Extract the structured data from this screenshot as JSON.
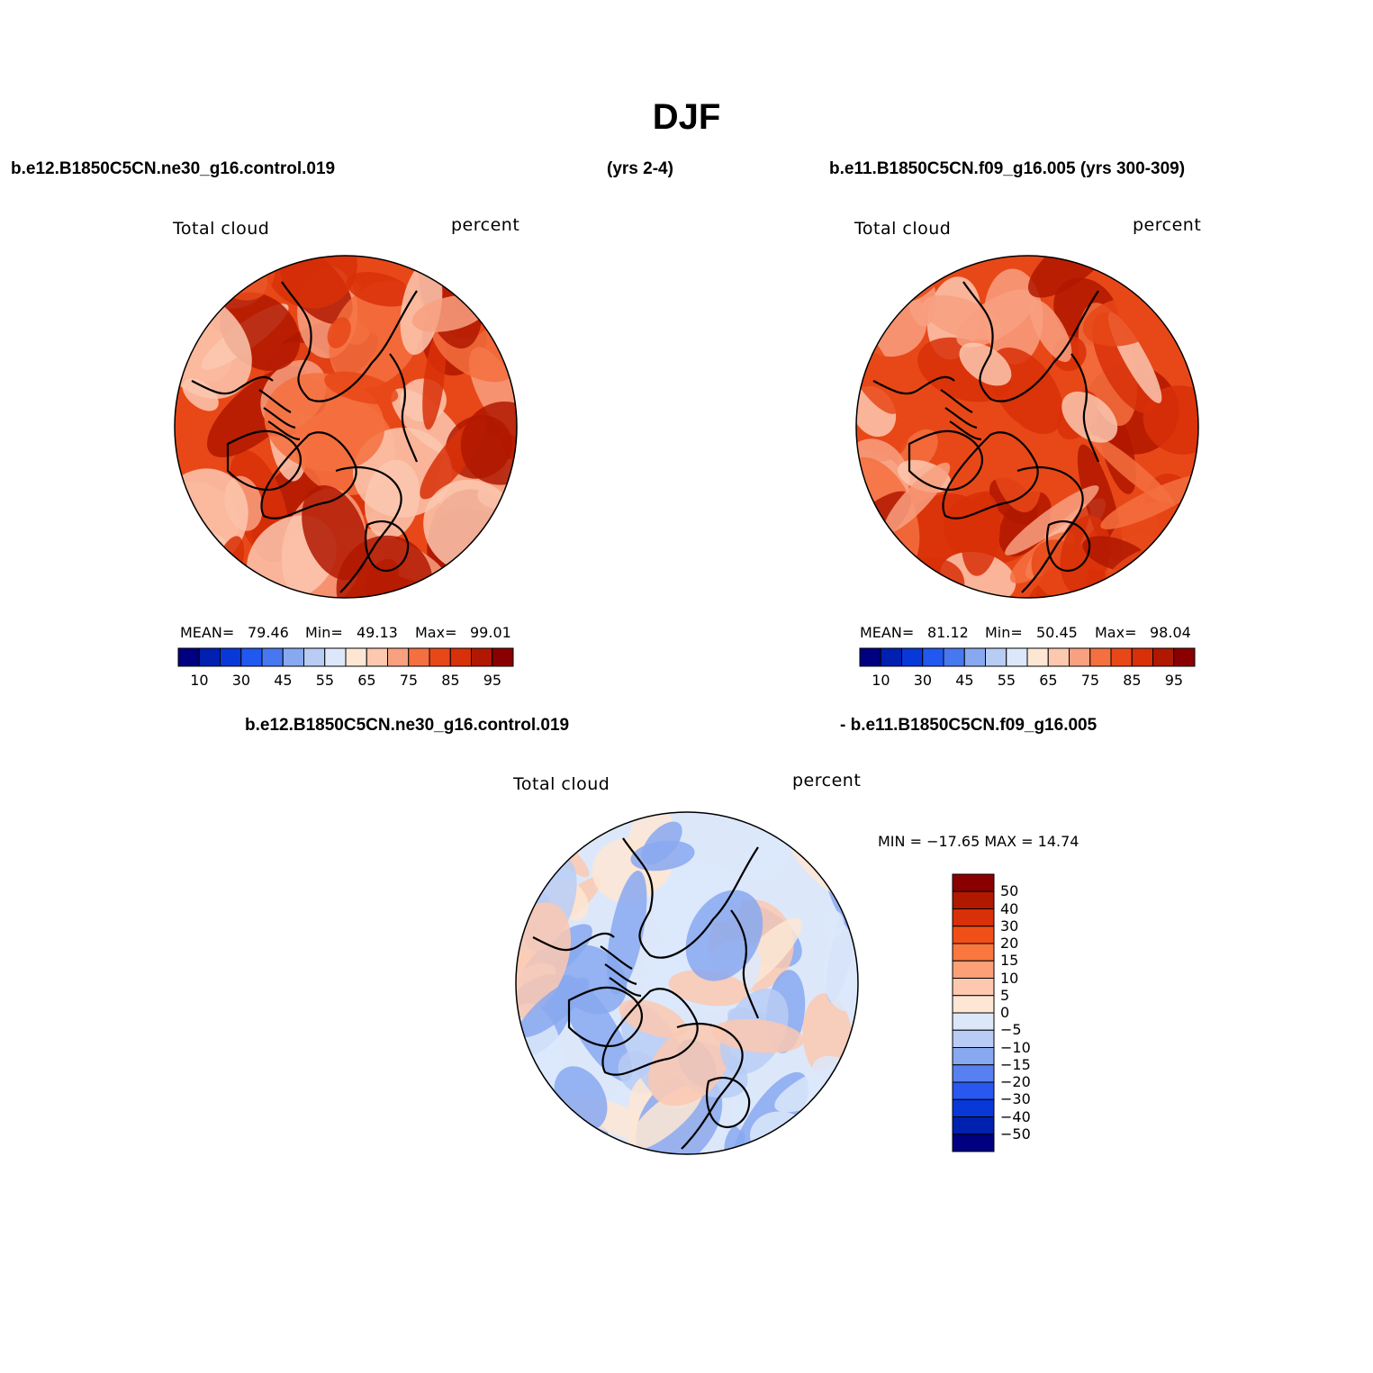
{
  "figure": {
    "title": "DJF",
    "top_left_header": "b.e12.B1850C5CN.ne30_g16.control.019",
    "top_mid_header": "(yrs 2-4)",
    "top_right_header": "b.e11.B1850C5CN.f09_g16.005 (yrs 300-309)",
    "diff_header_left": "b.e12.B1850C5CN.ne30_g16.control.019",
    "diff_header_right": "- b.e11.B1850C5CN.f09_g16.005"
  },
  "panels": [
    {
      "variable": "Total cloud",
      "units": "percent",
      "mean_label": "MEAN=",
      "mean": "79.46",
      "min_label": "Min=",
      "min": "49.13",
      "max_label": "Max=",
      "max": "99.01"
    },
    {
      "variable": "Total cloud",
      "units": "percent",
      "mean_label": "MEAN=",
      "mean": "81.12",
      "min_label": "Min=",
      "min": "50.45",
      "max_label": "Max=",
      "max": "98.04"
    }
  ],
  "diff_panel": {
    "variable": "Total cloud",
    "units": "percent",
    "minmax_text": "MIN = −17.65 MAX =  14.74"
  },
  "colorbar_main": {
    "colors": [
      "#000080",
      "#0020b0",
      "#0838d8",
      "#2058f0",
      "#4878f0",
      "#88a8f0",
      "#b8ccf4",
      "#dce8fa",
      "#fde6d4",
      "#fcc8b0",
      "#f8a080",
      "#f47040",
      "#e84818",
      "#d83008",
      "#b01800",
      "#8a0000"
    ],
    "labels": [
      "10",
      "30",
      "45",
      "55",
      "65",
      "75",
      "85",
      "95"
    ]
  },
  "colorbar_diff": {
    "colors": [
      "#8a0000",
      "#b01800",
      "#d83008",
      "#f05018",
      "#f87840",
      "#fca078",
      "#fcc8b0",
      "#fde6d4",
      "#dce8fa",
      "#b8ccf4",
      "#88a8f0",
      "#5880f0",
      "#2858f0",
      "#0838d8",
      "#0020b0",
      "#000080"
    ],
    "labels": [
      "50",
      "40",
      "30",
      "20",
      "15",
      "10",
      "5",
      "0",
      "−5",
      "−10",
      "−15",
      "−20",
      "−30",
      "−40",
      "−50"
    ]
  },
  "map_palettes": {
    "panel1": [
      "#e84818",
      "#d83008",
      "#f47040",
      "#f8a080",
      "#b01800",
      "#fcc8b0"
    ],
    "panel2": [
      "#e84818",
      "#d83008",
      "#f47040",
      "#f8a080",
      "#b01800",
      "#fcc8b0"
    ],
    "diff": [
      "#dce8fa",
      "#fde6d4",
      "#b8ccf4",
      "#88a8f0",
      "#fcc8b0"
    ]
  }
}
